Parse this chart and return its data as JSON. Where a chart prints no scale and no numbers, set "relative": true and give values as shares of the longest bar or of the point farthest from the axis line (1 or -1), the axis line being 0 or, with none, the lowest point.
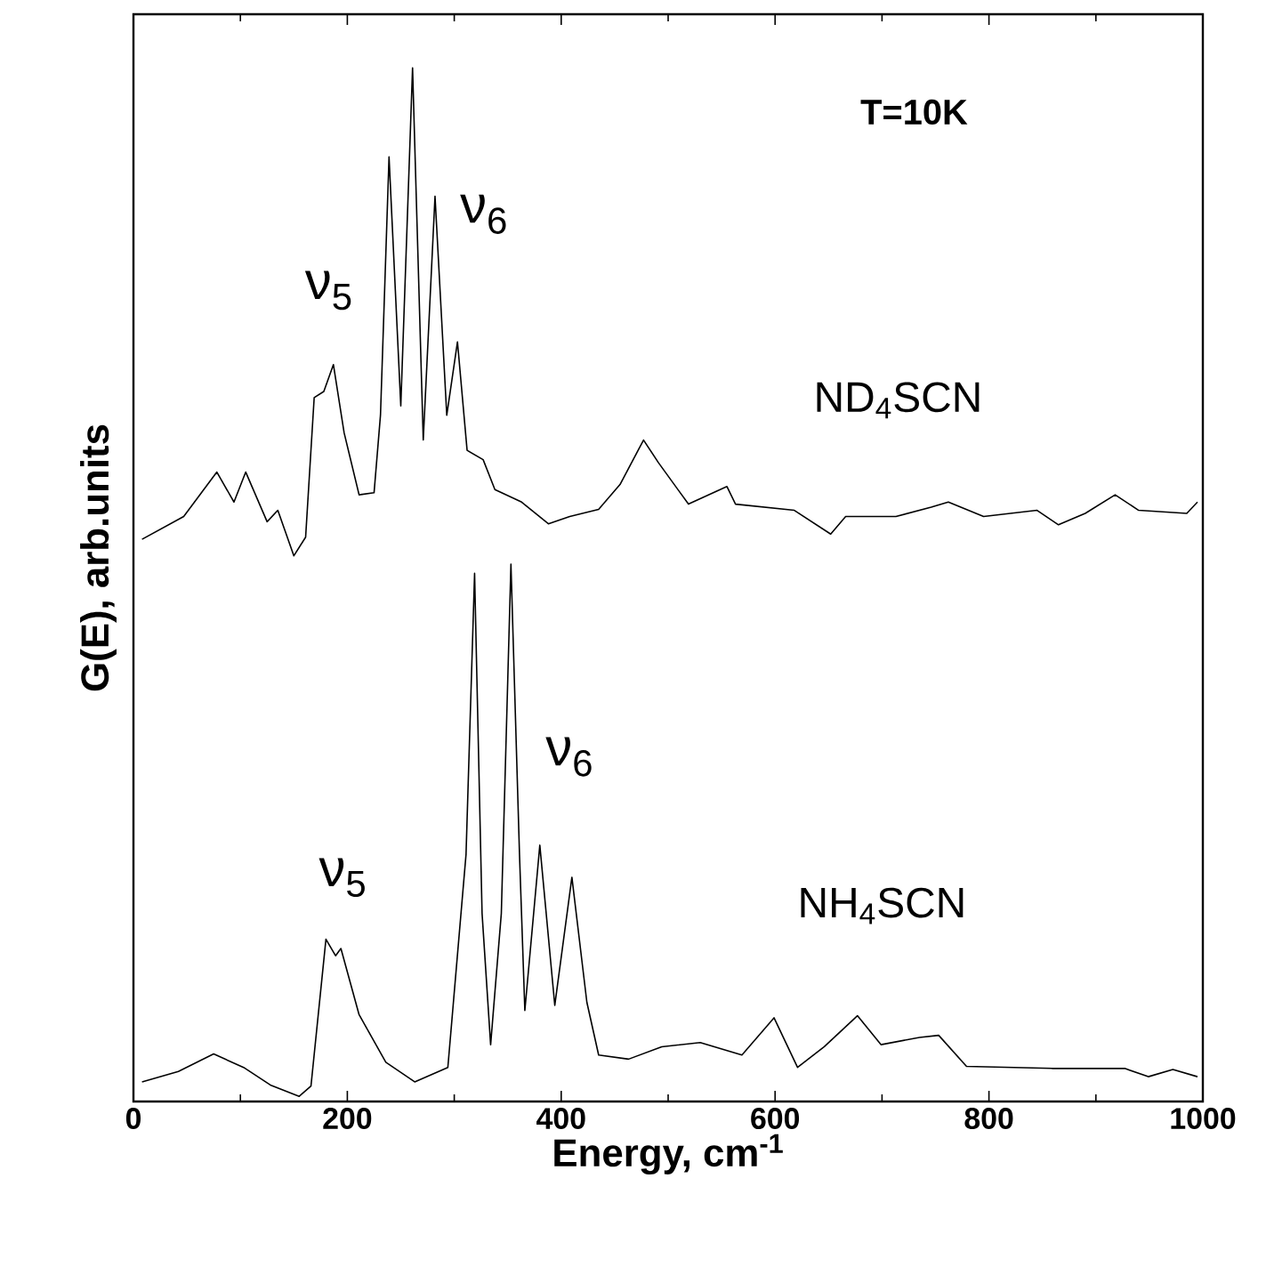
{
  "chart_data": {
    "type": "line",
    "relative": true,
    "xlabel": "Energy, cm$^{-1}$",
    "ylabel": "G(E), arb.units",
    "xlim": [
      0,
      1000
    ],
    "xticks": [
      0,
      200,
      400,
      600,
      800,
      1000
    ],
    "series": [
      {
        "name": "ND$_{4}$SCN",
        "color": "#000000",
        "x": [
          8,
          47,
          78,
          94,
          105,
          125,
          135,
          150,
          161,
          169,
          178,
          187,
          197,
          211,
          225,
          231,
          239,
          250,
          261,
          271,
          282,
          293,
          303,
          312,
          327,
          338,
          363,
          388,
          408,
          435,
          455,
          477,
          491,
          519,
          555,
          563,
          618,
          652,
          666,
          713,
          746,
          762,
          795,
          845,
          865,
          890,
          918,
          940,
          985,
          995
        ],
        "values": [
          0.544,
          0.566,
          0.609,
          0.58,
          0.609,
          0.561,
          0.572,
          0.528,
          0.546,
          0.681,
          0.687,
          0.713,
          0.647,
          0.587,
          0.589,
          0.664,
          0.914,
          0.673,
          1.0,
          0.64,
          0.876,
          0.664,
          0.735,
          0.63,
          0.621,
          0.592,
          0.58,
          0.559,
          0.566,
          0.573,
          0.597,
          0.64,
          0.618,
          0.578,
          0.595,
          0.578,
          0.572,
          0.549,
          0.566,
          0.566,
          0.575,
          0.58,
          0.566,
          0.572,
          0.558,
          0.569,
          0.587,
          0.572,
          0.569,
          0.58
        ]
      },
      {
        "name": "NH$_{4}$SCN",
        "color": "#000000",
        "x": [
          8,
          42,
          75,
          103,
          128,
          155,
          166,
          180,
          189,
          194,
          211,
          236,
          263,
          294,
          311,
          319,
          326,
          334,
          344,
          353,
          361,
          366,
          380,
          394,
          410,
          424,
          435,
          463,
          494,
          530,
          569,
          599,
          621,
          646,
          677,
          699,
          735,
          753,
          779,
          859,
          927,
          949,
          972,
          995
        ],
        "values": [
          0.019,
          0.029,
          0.046,
          0.033,
          0.016,
          0.005,
          0.015,
          0.157,
          0.141,
          0.148,
          0.084,
          0.038,
          0.019,
          0.033,
          0.239,
          0.511,
          0.182,
          0.055,
          0.182,
          0.52,
          0.239,
          0.088,
          0.248,
          0.093,
          0.217,
          0.096,
          0.045,
          0.041,
          0.053,
          0.057,
          0.045,
          0.081,
          0.033,
          0.053,
          0.083,
          0.055,
          0.062,
          0.064,
          0.034,
          0.032,
          0.032,
          0.024,
          0.031,
          0.024
        ]
      }
    ],
    "annotations": [
      "T=10K",
      "ν$_{5}$",
      "ν$_{6}$",
      "ν$_{5}$",
      "ν$_{6}$"
    ]
  }
}
